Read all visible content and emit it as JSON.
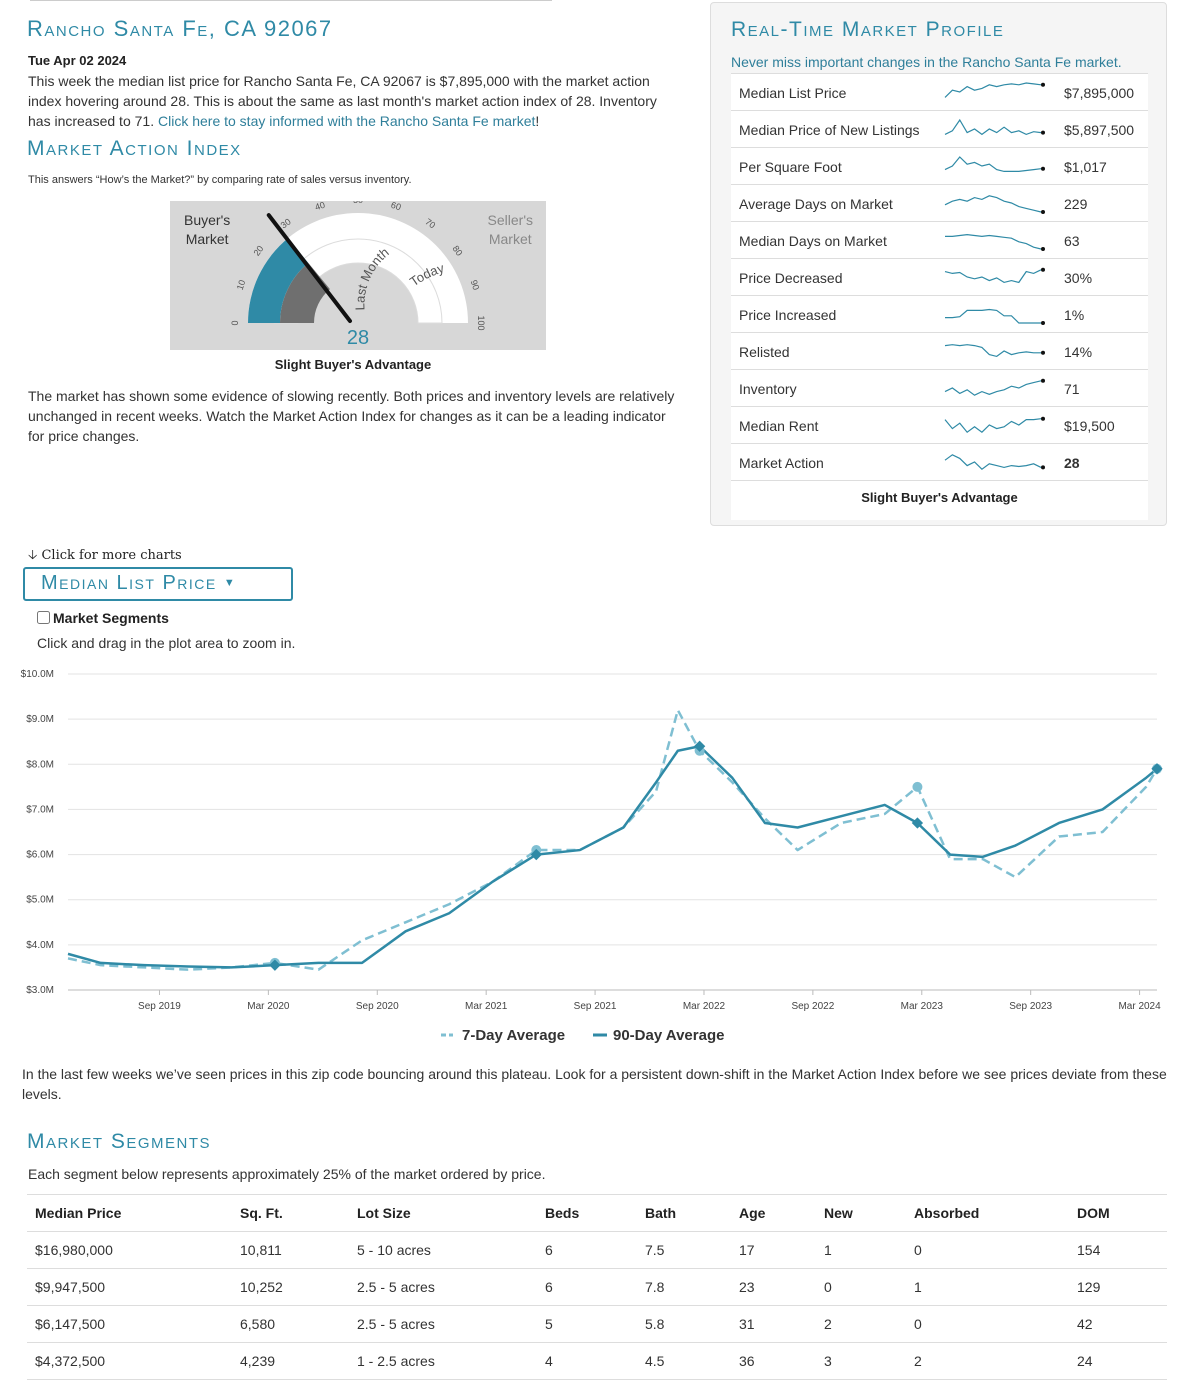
{
  "header": {
    "title": "Rancho Santa Fe, CA 92067",
    "date": "Tue Apr 02 2024",
    "summary": "This week the median list price for Rancho Santa Fe, CA 92067 is $7,895,000 with the market action index hovering around 28. This is about the same as last month's market action index of 28. Inventory has increased to 71.",
    "link_text": "Click here to stay informed with the Rancho Santa Fe market",
    "link_suffix": "!"
  },
  "market_action": {
    "title": "Market Action Index",
    "description": "This answers “How’s the Market?” by comparing rate of sales versus inventory.",
    "buyer_label_1": "Buyer's",
    "buyer_label_2": "Market",
    "seller_label_1": "Seller's",
    "seller_label_2": "Market",
    "ticks": [
      "0",
      "10",
      "20",
      "30",
      "40",
      "50",
      "60",
      "70",
      "80",
      "90",
      "100"
    ],
    "last_month_label": "Last Month",
    "today_label": "Today",
    "value": 28,
    "value_text": "28",
    "caption": "Slight Buyer's Advantage",
    "analysis": "The market has shown some evidence of slowing recently. Both prices and inventory levels are relatively unchanged in recent weeks. Watch the Market Action Index for changes as it can be a leading indicator for price changes."
  },
  "profile": {
    "title": "Real-Time Market Profile",
    "subtitle": "Never miss important changes in the Rancho Santa Fe market.",
    "rows": [
      {
        "label": "Median List Price",
        "value": "$7,895,000",
        "spark": [
          0.2,
          0.6,
          0.5,
          0.8,
          0.6,
          0.7,
          0.9,
          0.8,
          0.9,
          0.95,
          0.9,
          1.0,
          0.95,
          0.9
        ]
      },
      {
        "label": "Median Price of New Listings",
        "value": "$5,897,500",
        "spark": [
          0.2,
          0.4,
          1.0,
          0.3,
          0.5,
          0.2,
          0.5,
          0.3,
          0.6,
          0.3,
          0.4,
          0.2,
          0.35,
          0.3
        ]
      },
      {
        "label": "Per Square Foot",
        "value": "$1,017",
        "spark": [
          0.3,
          0.5,
          1.0,
          0.6,
          0.7,
          0.5,
          0.6,
          0.3,
          0.2,
          0.2,
          0.2,
          0.25,
          0.3,
          0.35
        ]
      },
      {
        "label": "Average Days on Market",
        "value": "229",
        "spark": [
          0.4,
          0.6,
          0.7,
          0.6,
          0.8,
          0.7,
          0.9,
          0.8,
          0.6,
          0.5,
          0.3,
          0.2,
          0.1,
          0.0
        ]
      },
      {
        "label": "Median Days on Market",
        "value": "63",
        "spark": [
          0.7,
          0.7,
          0.75,
          0.8,
          0.75,
          0.7,
          0.75,
          0.7,
          0.65,
          0.6,
          0.4,
          0.3,
          0.1,
          0.0
        ]
      },
      {
        "label": "Price Decreased",
        "value": "30%",
        "spark": [
          0.8,
          0.7,
          0.75,
          0.5,
          0.4,
          0.5,
          0.3,
          0.45,
          0.2,
          0.3,
          0.2,
          0.8,
          0.7,
          0.9
        ]
      },
      {
        "label": "Price Increased",
        "value": "1%",
        "spark": [
          0.3,
          0.3,
          0.35,
          0.7,
          0.7,
          0.7,
          0.75,
          0.7,
          0.4,
          0.4,
          0.0,
          0.0,
          0.0,
          0.0
        ]
      },
      {
        "label": "Relisted",
        "value": "14%",
        "spark": [
          0.8,
          0.85,
          0.8,
          0.85,
          0.8,
          0.7,
          0.3,
          0.2,
          0.5,
          0.3,
          0.4,
          0.45,
          0.4,
          0.4
        ]
      },
      {
        "label": "Inventory",
        "value": "71",
        "spark": [
          0.3,
          0.5,
          0.2,
          0.4,
          0.1,
          0.3,
          0.15,
          0.3,
          0.4,
          0.6,
          0.5,
          0.7,
          0.8,
          0.9
        ]
      },
      {
        "label": "Median Rent",
        "value": "$19,500",
        "spark": [
          0.8,
          0.3,
          0.6,
          0.1,
          0.4,
          0.1,
          0.5,
          0.3,
          0.4,
          0.7,
          0.5,
          0.8,
          0.8,
          0.85
        ]
      },
      {
        "label": "Market Action",
        "value": "28",
        "bold": true,
        "spark": [
          0.6,
          0.9,
          0.7,
          0.3,
          0.5,
          0.1,
          0.4,
          0.3,
          0.2,
          0.3,
          0.25,
          0.3,
          0.4,
          0.2
        ]
      }
    ],
    "footer": "Slight Buyer's Advantage"
  },
  "chart_section": {
    "more_charts": "Click for more charts",
    "selector_label": "Median List Price",
    "segments_label": "Market Segments",
    "zoom_hint": "Click and drag in the plot area to zoom in."
  },
  "chart_data": {
    "type": "line",
    "title": "Median List Price",
    "xlabel": "",
    "ylabel": "",
    "x_ticks": [
      "Sep 2019",
      "Mar 2020",
      "Sep 2020",
      "Mar 2021",
      "Sep 2021",
      "Mar 2022",
      "Sep 2022",
      "Mar 2023",
      "Sep 2023",
      "Mar 2024"
    ],
    "y_ticks": [
      "$3.0M",
      "$4.0M",
      "$5.0M",
      "$6.0M",
      "$7.0M",
      "$8.0M",
      "$9.0M",
      "$10.0M"
    ],
    "ylim": [
      3.0,
      10.0
    ],
    "x_range": [
      "Apr 2019",
      "Apr 2024"
    ],
    "x": [
      2019.25,
      2019.4,
      2019.6,
      2019.8,
      2020.0,
      2020.2,
      2020.4,
      2020.6,
      2020.8,
      2021.0,
      2021.2,
      2021.4,
      2021.6,
      2021.8,
      2021.95,
      2022.05,
      2022.15,
      2022.3,
      2022.45,
      2022.6,
      2022.8,
      2023.0,
      2023.15,
      2023.3,
      2023.45,
      2023.6,
      2023.8,
      2024.0,
      2024.2,
      2024.25
    ],
    "series": [
      {
        "name": "7-Day Average",
        "style": "dashed",
        "values": [
          3.7,
          3.55,
          3.5,
          3.45,
          3.5,
          3.6,
          3.45,
          4.1,
          4.5,
          4.9,
          5.4,
          6.1,
          6.1,
          6.6,
          7.4,
          9.2,
          8.3,
          7.6,
          6.8,
          6.1,
          6.7,
          6.9,
          7.5,
          5.9,
          5.9,
          5.5,
          6.4,
          6.5,
          7.5,
          7.9
        ]
      },
      {
        "name": "90-Day Average",
        "style": "solid",
        "values": [
          3.8,
          3.6,
          3.55,
          3.52,
          3.5,
          3.55,
          3.6,
          3.6,
          4.3,
          4.7,
          5.4,
          6.0,
          6.1,
          6.6,
          7.6,
          8.3,
          8.4,
          7.7,
          6.7,
          6.6,
          6.85,
          7.1,
          6.7,
          6.0,
          5.95,
          6.2,
          6.7,
          7.0,
          7.7,
          7.9
        ]
      }
    ],
    "legend": [
      "7-Day Average",
      "90-Day Average"
    ],
    "legend_position": "bottom",
    "grid": true
  },
  "plateau_text": "In the last few weeks we’ve seen prices in this zip code bouncing around this plateau. Look for a persistent down-shift in the Market Action Index before we see prices deviate from these levels.",
  "segments": {
    "title": "Market Segments",
    "description": "Each segment below represents approximately 25% of the market ordered by price.",
    "headers": [
      "Median Price",
      "Sq. Ft.",
      "Lot Size",
      "Beds",
      "Bath",
      "Age",
      "New",
      "Absorbed",
      "DOM"
    ],
    "rows": [
      [
        "$16,980,000",
        "10,811",
        "5 - 10 acres",
        "6",
        "7.5",
        "17",
        "1",
        "0",
        "154"
      ],
      [
        "$9,947,500",
        "10,252",
        "2.5 - 5 acres",
        "6",
        "7.8",
        "23",
        "0",
        "1",
        "129"
      ],
      [
        "$6,147,500",
        "6,580",
        "2.5 - 5 acres",
        "5",
        "5.8",
        "31",
        "2",
        "0",
        "42"
      ],
      [
        "$4,372,500",
        "4,239",
        "1 - 2.5 acres",
        "4",
        "4.5",
        "36",
        "3",
        "2",
        "24"
      ]
    ]
  },
  "colors": {
    "accent": "#2f8aa6",
    "series_light": "#7fbfd2",
    "gauge_bg": "#d7d7d7",
    "gauge_active": "#2f8aa6",
    "gauge_prev": "#6f6f6f"
  }
}
